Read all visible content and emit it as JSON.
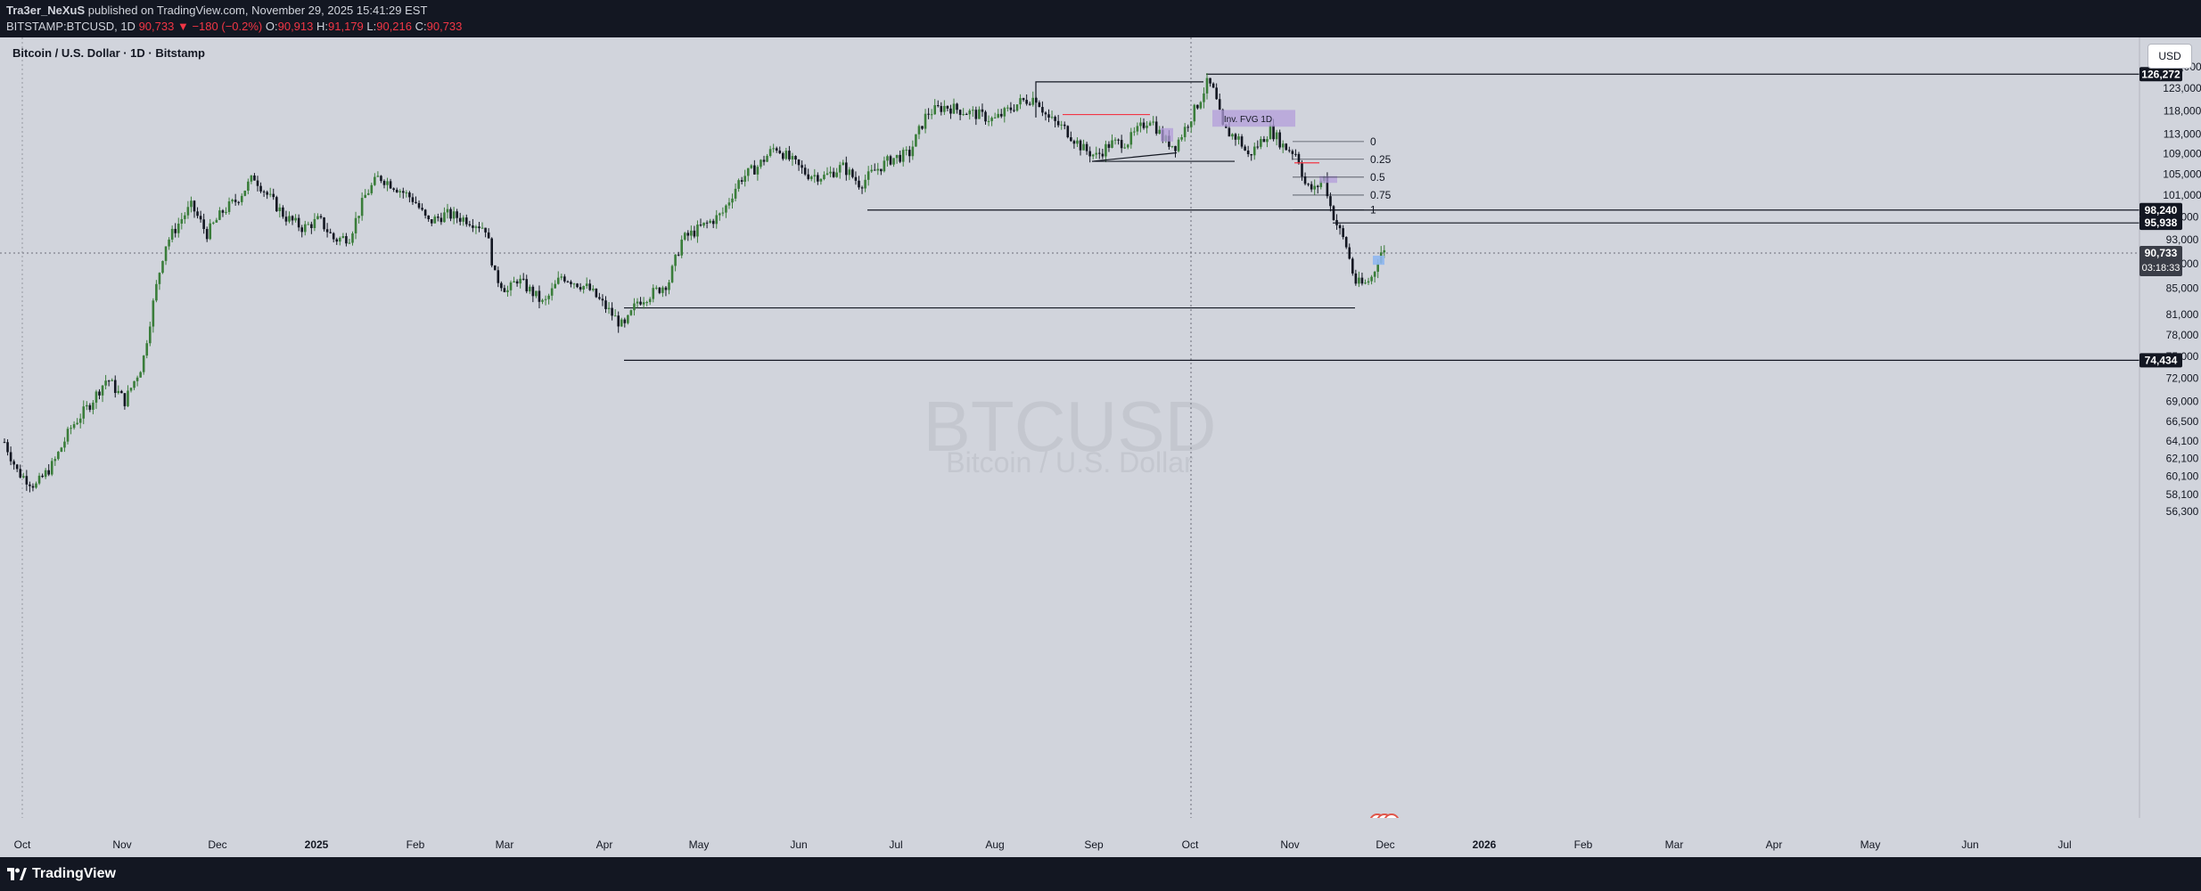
{
  "header": {
    "author": "Tra3er_NeXuS",
    "published_text": " published on TradingView.com, November 29, 2025 15:41:29 EST",
    "symbol_line": "BITSTAMP:BTCUSD, 1D",
    "last_price": "90,733",
    "change_arrow": "▼",
    "change": "−180 (−0.2%)",
    "open_label": "O:",
    "open": "90,913",
    "high_label": "H:",
    "high": "91,179",
    "low_label": "L:",
    "low": "90,216",
    "close_label": "C:",
    "close": "90,733"
  },
  "chart": {
    "title": "Bitcoin / U.S. Dollar · 1D · Bitstamp",
    "currency_button": "USD",
    "watermark_symbol": "BTCUSD",
    "watermark_name": "Bitcoin / U.S. Dollar",
    "fvg_label": "Inv. FVG 1D",
    "fib_levels": [
      "0",
      "0.25",
      "0.5",
      "0.75",
      "1"
    ]
  },
  "chart_data": {
    "type": "candlestick",
    "title": "Bitcoin / U.S. Dollar · 1D · Bitstamp",
    "y_axis_scale": "log",
    "y_axis_ticks": [
      "128,000",
      "123,000",
      "118,000",
      "113,000",
      "109,000",
      "105,000",
      "101,000",
      "97,000",
      "93,000",
      "89,000",
      "85,000",
      "81,000",
      "78,000",
      "75,000",
      "72,000",
      "69,000",
      "66,500",
      "64,100",
      "62,100",
      "60,100",
      "58,100",
      "56,300"
    ],
    "x_axis_ticks": [
      "Oct",
      "Nov",
      "Dec",
      "2025",
      "Feb",
      "Mar",
      "Apr",
      "May",
      "Jun",
      "Jul",
      "Aug",
      "Sep",
      "Oct",
      "Nov",
      "Dec",
      "2026",
      "Feb",
      "Mar",
      "Apr",
      "May",
      "Jun",
      "Jul"
    ],
    "price_labels": [
      {
        "value": "126,272",
        "style": "dark"
      },
      {
        "value": "98,240",
        "style": "dark"
      },
      {
        "value": "95,938",
        "style": "dark"
      },
      {
        "value": "90,733",
        "style": "current"
      },
      {
        "value": "74,434",
        "style": "dark"
      }
    ],
    "countdown": "03:18:33",
    "horizontal_levels": [
      126272,
      98240,
      95938,
      82000,
      74434
    ],
    "colors": {
      "up": "#3a7d3a",
      "down": "#131722",
      "fvg": "#b39ddb",
      "level_red": "#f23645"
    }
  },
  "footer": {
    "brand": "TradingView"
  }
}
